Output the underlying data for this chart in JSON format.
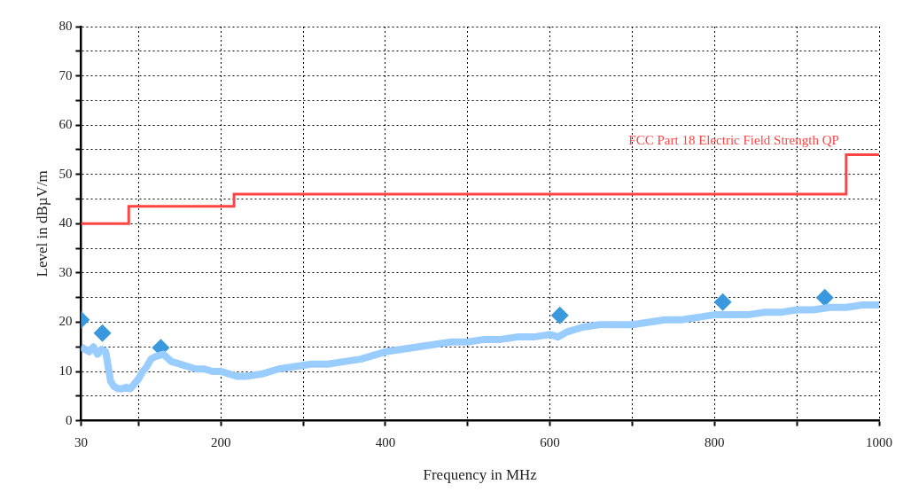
{
  "chart_data": {
    "type": "line",
    "xlabel": "Frequency in MHz",
    "ylabel": "Level in dBµV/m",
    "xlim": [
      30,
      1000
    ],
    "xticks": [
      30,
      {
        "value": 100,
        "label": null
      },
      200,
      {
        "value": 300,
        "label": null
      },
      400,
      {
        "value": 500,
        "label": null
      },
      600,
      {
        "value": 700,
        "label": null
      },
      800,
      {
        "value": 900,
        "label": null
      },
      1000
    ],
    "ylim": [
      0,
      80
    ],
    "yticks": [
      0,
      {
        "value": 5,
        "label": null
      },
      10,
      {
        "value": 15,
        "label": null
      },
      20,
      {
        "value": 25,
        "label": null
      },
      30,
      {
        "value": 35,
        "label": null
      },
      40,
      {
        "value": 45,
        "label": null
      },
      50,
      {
        "value": 55,
        "label": null
      },
      60,
      {
        "value": 65,
        "label": null
      },
      70,
      {
        "value": 75,
        "label": null
      },
      80
    ],
    "grid": true,
    "legend": false,
    "line_style": "solid",
    "series": [
      {
        "type": "line",
        "color": "#99ccff",
        "marker": "none",
        "x": [
          30,
          35,
          40,
          45,
          50,
          55,
          60,
          63,
          66,
          70,
          75,
          80,
          85,
          90,
          95,
          100,
          105,
          110,
          115,
          120,
          130,
          140,
          150,
          160,
          170,
          180,
          190,
          200,
          210,
          220,
          230,
          250,
          270,
          290,
          310,
          330,
          350,
          370,
          390,
          400,
          420,
          440,
          460,
          480,
          500,
          520,
          540,
          560,
          580,
          600,
          610,
          620,
          640,
          660,
          680,
          700,
          720,
          740,
          760,
          780,
          800,
          820,
          840,
          860,
          880,
          900,
          920,
          940,
          960,
          980,
          1000
        ],
        "values": [
          15,
          14.5,
          14,
          15,
          13.5,
          14.5,
          14,
          11,
          8,
          7,
          6.5,
          6.5,
          6.8,
          6.5,
          7.5,
          8.5,
          10,
          11,
          12.5,
          13,
          13.5,
          12,
          11.5,
          11,
          10.5,
          10.5,
          10,
          10,
          9.5,
          9,
          9,
          9.5,
          10.5,
          11,
          11.5,
          11.5,
          12,
          12.5,
          13.5,
          14,
          14.5,
          15,
          15.5,
          16,
          16,
          16.5,
          16.5,
          17,
          17,
          17.5,
          17,
          18,
          19,
          19.5,
          19.5,
          19.5,
          20,
          20.5,
          20.5,
          21,
          21.5,
          21.5,
          21.5,
          22,
          22,
          22.5,
          22.5,
          23,
          23,
          23.5,
          23.5
        ]
      },
      {
        "type": "step",
        "name": "FCC Part 18 Electric Field Strength QP",
        "color": "#ff4444",
        "x": [
          30,
          88,
          216,
          960,
          1000
        ],
        "values": [
          40,
          43.5,
          46,
          54,
          54
        ]
      },
      {
        "type": "scatter",
        "color": "#3a98dc",
        "marker": "diamond",
        "x": [
          30,
          56,
          127,
          612,
          810,
          934
        ],
        "values": [
          20.5,
          17.8,
          14.8,
          21.4,
          24.1,
          25
        ]
      }
    ]
  }
}
